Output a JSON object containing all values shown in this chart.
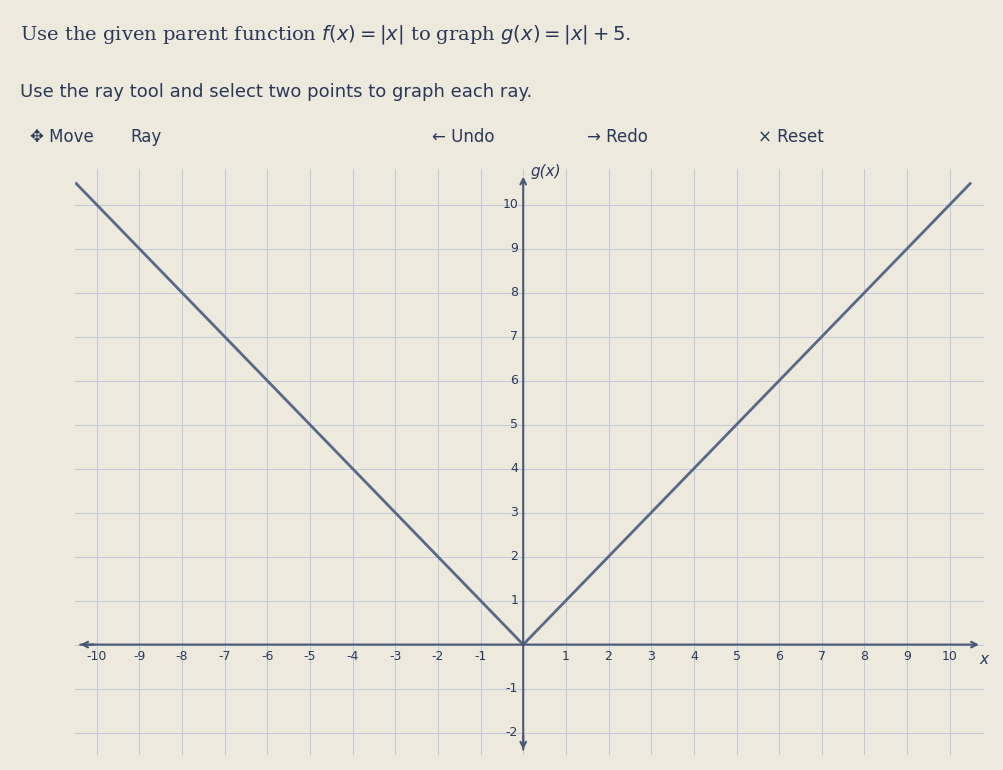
{
  "title_line1": "Use the given parent function $f(x) = |x|$ to graph $g(x) = |x| + 5$.",
  "title_line2": "Use the ray tool and select two points to graph each ray.",
  "ylabel": "g(x)",
  "xlabel": "x",
  "xmin": -10,
  "xmax": 10,
  "ymin": -2,
  "ymax": 10,
  "vertex_x": 0,
  "vertex_y": 0,
  "bg_color": "#ede9dd",
  "toolbar_bg": "#d8d4c8",
  "grid_color": "#c0c8d8",
  "axis_color": "#4a5878",
  "line_color": "#5a6888",
  "text_color": "#2a3858",
  "tick_color": "#2a3858",
  "title_fontsize": 14,
  "subtitle_fontsize": 13,
  "tick_fontsize": 9,
  "label_fontsize": 11
}
